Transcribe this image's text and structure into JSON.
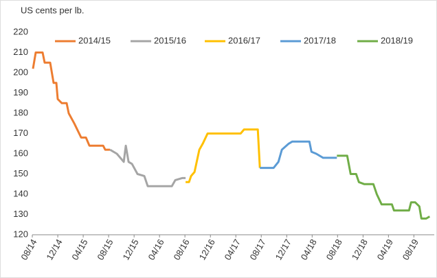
{
  "chart_data": {
    "type": "line",
    "ylabel": "US cents per lb.",
    "ylim": [
      120,
      220
    ],
    "yticks": [
      120,
      130,
      140,
      150,
      160,
      170,
      180,
      190,
      200,
      210,
      220
    ],
    "xlim": [
      2014.583,
      2019.85
    ],
    "xticks": [
      {
        "value": 2014.583,
        "label": "08/14"
      },
      {
        "value": 2014.917,
        "label": "12/14"
      },
      {
        "value": 2015.25,
        "label": "04/15"
      },
      {
        "value": 2015.583,
        "label": "08/15"
      },
      {
        "value": 2015.917,
        "label": "12/15"
      },
      {
        "value": 2016.25,
        "label": "04/16"
      },
      {
        "value": 2016.583,
        "label": "08/16"
      },
      {
        "value": 2016.917,
        "label": "12/16"
      },
      {
        "value": 2017.25,
        "label": "04/17"
      },
      {
        "value": 2017.583,
        "label": "08/17"
      },
      {
        "value": 2017.917,
        "label": "12/17"
      },
      {
        "value": 2018.25,
        "label": "04/18"
      },
      {
        "value": 2018.583,
        "label": "08/18"
      },
      {
        "value": 2018.917,
        "label": "12/18"
      },
      {
        "value": 2019.25,
        "label": "04/19"
      },
      {
        "value": 2019.583,
        "label": "08/19"
      }
    ],
    "grid": false,
    "series": [
      {
        "name": "2014/15",
        "color": "#ed7d31",
        "x": [
          2014.592,
          2014.628,
          2014.718,
          2014.745,
          2014.817,
          2014.862,
          2014.898,
          2014.916,
          2014.97,
          2015.033,
          2015.06,
          2015.133,
          2015.223,
          2015.286,
          2015.331,
          2015.511,
          2015.538,
          2015.601
        ],
        "values": [
          202,
          210,
          210,
          205,
          205,
          195,
          195,
          187,
          185,
          185,
          180,
          175,
          168,
          168,
          164,
          164,
          162,
          162
        ]
      },
      {
        "name": "2015/16",
        "color": "#a5a5a5",
        "x": [
          2015.601,
          2015.691,
          2015.736,
          2015.781,
          2015.808,
          2015.844,
          2015.889,
          2015.961,
          2016.051,
          2016.096,
          2016.412,
          2016.457,
          2016.547,
          2016.592
        ],
        "values": [
          162,
          160,
          158,
          156,
          164,
          156,
          155,
          150,
          149,
          144,
          144,
          147,
          148,
          148
        ]
      },
      {
        "name": "2016/17",
        "color": "#ffc000",
        "x": [
          2016.592,
          2016.637,
          2016.664,
          2016.709,
          2016.772,
          2016.817,
          2016.88,
          2017.313,
          2017.358,
          2017.538,
          2017.565
        ],
        "values": [
          146,
          146,
          149,
          151,
          162,
          165,
          170,
          170,
          172,
          172,
          153
        ]
      },
      {
        "name": "2017/18",
        "color": "#5b9bd5",
        "x": [
          2017.565,
          2017.745,
          2017.808,
          2017.853,
          2017.943,
          2017.988,
          2018.214,
          2018.241,
          2018.304,
          2018.394,
          2018.574
        ],
        "values": [
          153,
          153,
          156,
          162,
          165,
          166,
          166,
          161,
          160,
          158,
          158
        ]
      },
      {
        "name": "2018/19",
        "color": "#70ad47",
        "x": [
          2018.574,
          2018.709,
          2018.754,
          2018.826,
          2018.862,
          2018.934,
          2019.052,
          2019.097,
          2019.16,
          2019.295,
          2019.322,
          2019.52,
          2019.547,
          2019.601,
          2019.655,
          2019.682,
          2019.745,
          2019.79
        ],
        "values": [
          159,
          159,
          150,
          150,
          146,
          145,
          145,
          140,
          135,
          135,
          132,
          132,
          136,
          136,
          134,
          128,
          128,
          129
        ]
      }
    ]
  }
}
